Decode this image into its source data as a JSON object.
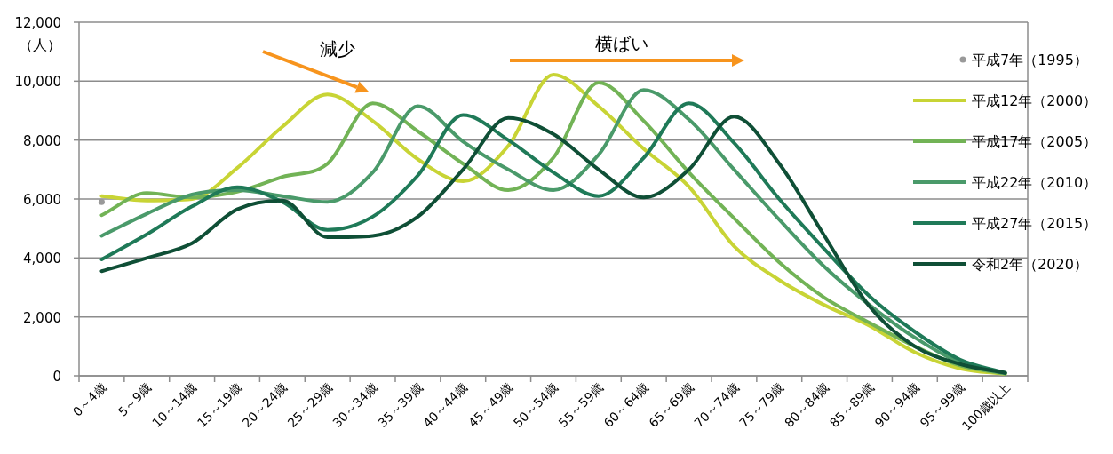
{
  "chart_data": {
    "type": "line",
    "ylabel": "（人）",
    "legend": "right",
    "grid": "y",
    "categories": [
      "0～4歳",
      "5～9歳",
      "10～14歳",
      "15～19歳",
      "20～24歳",
      "25～29歳",
      "30～34歳",
      "35～39歳",
      "40～44歳",
      "45～49歳",
      "50～54歳",
      "55～59歳",
      "60～64歳",
      "65～69歳",
      "70～74歳",
      "75～79歳",
      "80～84歳",
      "85～89歳",
      "90～94歳",
      "95～99歳",
      "100歳以上"
    ],
    "ylim": [
      0,
      12000
    ],
    "yticks": [
      {
        "value": 0,
        "label": "0"
      },
      {
        "value": 2000,
        "label": "2,000"
      },
      {
        "value": 4000,
        "label": "4,000"
      },
      {
        "value": 6000,
        "label": "6,000"
      },
      {
        "value": 8000,
        "label": "8,000"
      },
      {
        "value": 10000,
        "label": "10,000"
      },
      {
        "value": 12000,
        "label": "12,000"
      }
    ],
    "series": [
      {
        "name": "平成7年（1995）",
        "color": "#999999",
        "marker": "circle",
        "values": [
          5900,
          null,
          null,
          null,
          null,
          null,
          null,
          null,
          null,
          null,
          null,
          null,
          null,
          null,
          null,
          null,
          null,
          null,
          null,
          null,
          null
        ]
      },
      {
        "name": "平成12年（2000）",
        "color": "#c8d435",
        "values": [
          6100,
          5950,
          6000,
          7050,
          8450,
          9550,
          8650,
          7350,
          6600,
          7800,
          10220,
          9150,
          7700,
          6420,
          4400,
          3250,
          2400,
          1700,
          800,
          250,
          60
        ]
      },
      {
        "name": "平成17年（2005）",
        "color": "#72b356",
        "values": [
          5450,
          6200,
          6050,
          6250,
          6750,
          7200,
          9250,
          8300,
          7200,
          6300,
          7400,
          9950,
          8650,
          6900,
          5350,
          3850,
          2650,
          1800,
          1000,
          350,
          70
        ]
      },
      {
        "name": "平成22年（2010）",
        "color": "#4a9a6a",
        "values": [
          4750,
          5500,
          6150,
          6300,
          6100,
          5900,
          6900,
          9150,
          7950,
          7000,
          6300,
          7500,
          9700,
          8700,
          7000,
          5300,
          3700,
          2400,
          1300,
          450,
          80
        ]
      },
      {
        "name": "平成27年（2015）",
        "color": "#1f7a58",
        "values": [
          3950,
          4800,
          5750,
          6400,
          5900,
          4950,
          5400,
          6800,
          8850,
          8000,
          6900,
          6100,
          7400,
          9250,
          7900,
          6000,
          4300,
          2700,
          1500,
          550,
          100
        ]
      },
      {
        "name": "令和2年（2020）",
        "color": "#0f4f36",
        "values": [
          3550,
          4000,
          4500,
          5650,
          5950,
          4700,
          4750,
          5400,
          7000,
          8750,
          8200,
          7000,
          6050,
          7000,
          8800,
          7200,
          4750,
          2350,
          1000,
          400,
          100
        ]
      }
    ],
    "annotations": [
      "減少",
      "横ばい"
    ]
  }
}
